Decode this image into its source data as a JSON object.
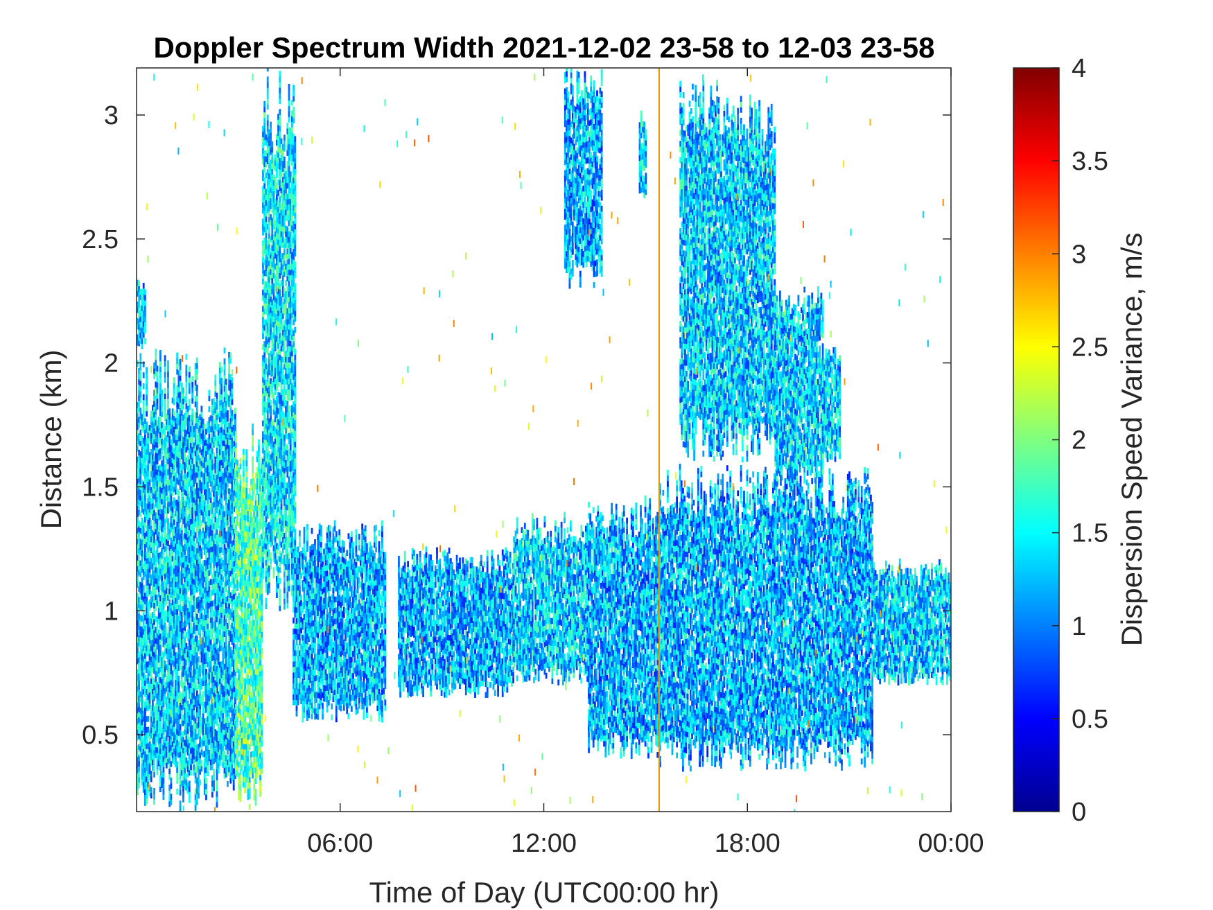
{
  "chart_data": {
    "type": "heatmap",
    "title": "Doppler Spectrum Width 2021-12-02 23-58 to 12-03 23-58",
    "xlabel": "Time of Day (UTC00:00 hr)",
    "ylabel": "Distance (km)",
    "xlim": [
      0,
      24
    ],
    "ylim": [
      0.19,
      3.19
    ],
    "x_ticks": [
      {
        "value": 6,
        "label": "06:00"
      },
      {
        "value": 12,
        "label": "12:00"
      },
      {
        "value": 18,
        "label": "18:00"
      },
      {
        "value": 24,
        "label": "00:00"
      }
    ],
    "y_ticks": [
      {
        "value": 0.5,
        "label": "0.5"
      },
      {
        "value": 1.0,
        "label": "1"
      },
      {
        "value": 1.5,
        "label": "1.5"
      },
      {
        "value": 2.0,
        "label": "2"
      },
      {
        "value": 2.5,
        "label": "2.5"
      },
      {
        "value": 3.0,
        "label": "3"
      }
    ],
    "colorbar": {
      "label": "Dispersion Speed Variance, m/s",
      "colormap": "jet",
      "clim": [
        0,
        4
      ],
      "ticks": [
        "0",
        "0.5",
        "1",
        "1.5",
        "2",
        "2.5",
        "3",
        "3.5",
        "4"
      ]
    },
    "field_mean": 1.3,
    "grid": false,
    "marker_line": {
      "x": 15.4,
      "color": "#e69500"
    },
    "regions": [
      {
        "x": [
          0,
          2.9
        ],
        "y": [
          0.19,
          2.05
        ],
        "mean": 1.3
      },
      {
        "x": [
          0,
          0.25
        ],
        "y": [
          2.05,
          2.35
        ],
        "mean": 1.3
      },
      {
        "x": [
          2.9,
          3.7
        ],
        "y": [
          0.19,
          1.75
        ],
        "mean": 1.8
      },
      {
        "x": [
          3.7,
          4.65
        ],
        "y": [
          1.0,
          3.19
        ],
        "mean": 1.4
      },
      {
        "x": [
          4.6,
          7.3
        ],
        "y": [
          0.55,
          1.35
        ],
        "mean": 1.2
      },
      {
        "x": [
          7.7,
          11.1
        ],
        "y": [
          0.65,
          1.25
        ],
        "mean": 1.2
      },
      {
        "x": [
          11.1,
          13.3
        ],
        "y": [
          0.7,
          1.38
        ],
        "mean": 1.3
      },
      {
        "x": [
          13.3,
          15.4
        ],
        "y": [
          0.4,
          1.45
        ],
        "mean": 1.2
      },
      {
        "x": [
          15.4,
          21.7
        ],
        "y": [
          0.35,
          1.58
        ],
        "mean": 1.2
      },
      {
        "x": [
          21.7,
          24
        ],
        "y": [
          0.7,
          1.2
        ],
        "mean": 1.3
      },
      {
        "x": [
          12.6,
          13.7
        ],
        "y": [
          2.3,
          3.19
        ],
        "mean": 1.2
      },
      {
        "x": [
          14.8,
          15.0
        ],
        "y": [
          2.65,
          3.0
        ],
        "mean": 1.3
      },
      {
        "x": [
          16.0,
          17.2
        ],
        "y": [
          1.6,
          3.19
        ],
        "mean": 1.3
      },
      {
        "x": [
          17.2,
          18.8
        ],
        "y": [
          1.6,
          3.1
        ],
        "mean": 1.3
      },
      {
        "x": [
          18.8,
          20.2
        ],
        "y": [
          1.5,
          2.3
        ],
        "mean": 1.3
      },
      {
        "x": [
          20.2,
          20.7
        ],
        "y": [
          1.6,
          2.05
        ],
        "mean": 1.3
      }
    ]
  }
}
